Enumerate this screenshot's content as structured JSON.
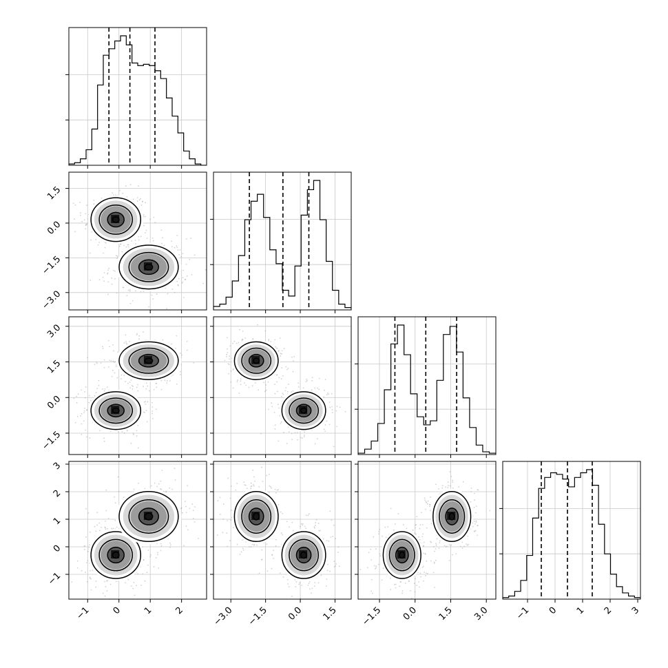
{
  "chart_data": {
    "type": "corner",
    "n_params": 4,
    "grid": true,
    "params": [
      {
        "range": [
          -1.6,
          2.8
        ],
        "ticks": [
          -1,
          0,
          1,
          2
        ],
        "tick_labels": [
          "−1",
          "0",
          "1",
          "2"
        ],
        "quantiles": [
          -0.32,
          0.35,
          1.15
        ],
        "hist_y_ticks": [
          0.35,
          0.7
        ],
        "hist": [
          0.01,
          0.02,
          0.05,
          0.12,
          0.28,
          0.62,
          0.85,
          0.9,
          0.96,
          1.0,
          0.93,
          0.79,
          0.77,
          0.78,
          0.77,
          0.73,
          0.67,
          0.52,
          0.38,
          0.25,
          0.11,
          0.05,
          0.01,
          0.0
        ]
      },
      {
        "range": [
          -3.75,
          2.2
        ],
        "ticks": [
          -3.0,
          -1.5,
          0.0,
          1.5
        ],
        "tick_labels": [
          "−3.0",
          "−1.5",
          "0.0",
          "1.5"
        ],
        "quantiles": [
          -2.2,
          -0.75,
          0.37
        ],
        "hist_y_ticks": [
          0.35,
          0.7
        ],
        "hist": [
          0.03,
          0.05,
          0.11,
          0.25,
          0.47,
          0.78,
          0.94,
          1.0,
          0.8,
          0.52,
          0.4,
          0.17,
          0.12,
          0.38,
          0.82,
          1.04,
          1.12,
          0.78,
          0.42,
          0.17,
          0.05,
          0.02
        ]
      },
      {
        "range": [
          -2.4,
          3.4
        ],
        "ticks": [
          -1.5,
          0.0,
          1.5,
          3.0
        ],
        "tick_labels": [
          "−1.5",
          "0.0",
          "1.5",
          "3.0"
        ],
        "quantiles": [
          -0.85,
          0.45,
          1.75
        ],
        "hist_y_ticks": [
          0.35,
          0.7
        ],
        "hist": [
          0.01,
          0.04,
          0.1,
          0.23,
          0.48,
          0.82,
          0.96,
          0.74,
          0.45,
          0.28,
          0.22,
          0.25,
          0.55,
          0.89,
          0.95,
          0.76,
          0.42,
          0.2,
          0.07,
          0.02,
          0.01
        ]
      },
      {
        "range": [
          -1.9,
          3.1
        ],
        "ticks": [
          -1,
          0,
          1,
          2,
          3
        ],
        "tick_labels": [
          "−1",
          "0",
          "1",
          "2",
          "3"
        ],
        "quantiles": [
          -0.5,
          0.45,
          1.35
        ],
        "hist_y_ticks": [
          0.35,
          0.7
        ],
        "hist": [
          0.01,
          0.02,
          0.05,
          0.12,
          0.28,
          0.52,
          0.71,
          0.78,
          0.81,
          0.8,
          0.77,
          0.72,
          0.78,
          0.81,
          0.83,
          0.73,
          0.48,
          0.29,
          0.16,
          0.08,
          0.04,
          0.02,
          0.01
        ]
      }
    ],
    "components": [
      {
        "mean": [
          -0.1,
          0.15,
          -0.55,
          -0.3
        ],
        "sd": [
          0.42,
          0.5,
          0.42,
          0.45
        ]
      },
      {
        "mean": [
          0.95,
          -1.9,
          1.55,
          1.1
        ],
        "sd": [
          0.5,
          0.5,
          0.42,
          0.48
        ]
      }
    ],
    "contour_levels": [
      0.9,
      0.6,
      0.3,
      0.12
    ]
  }
}
